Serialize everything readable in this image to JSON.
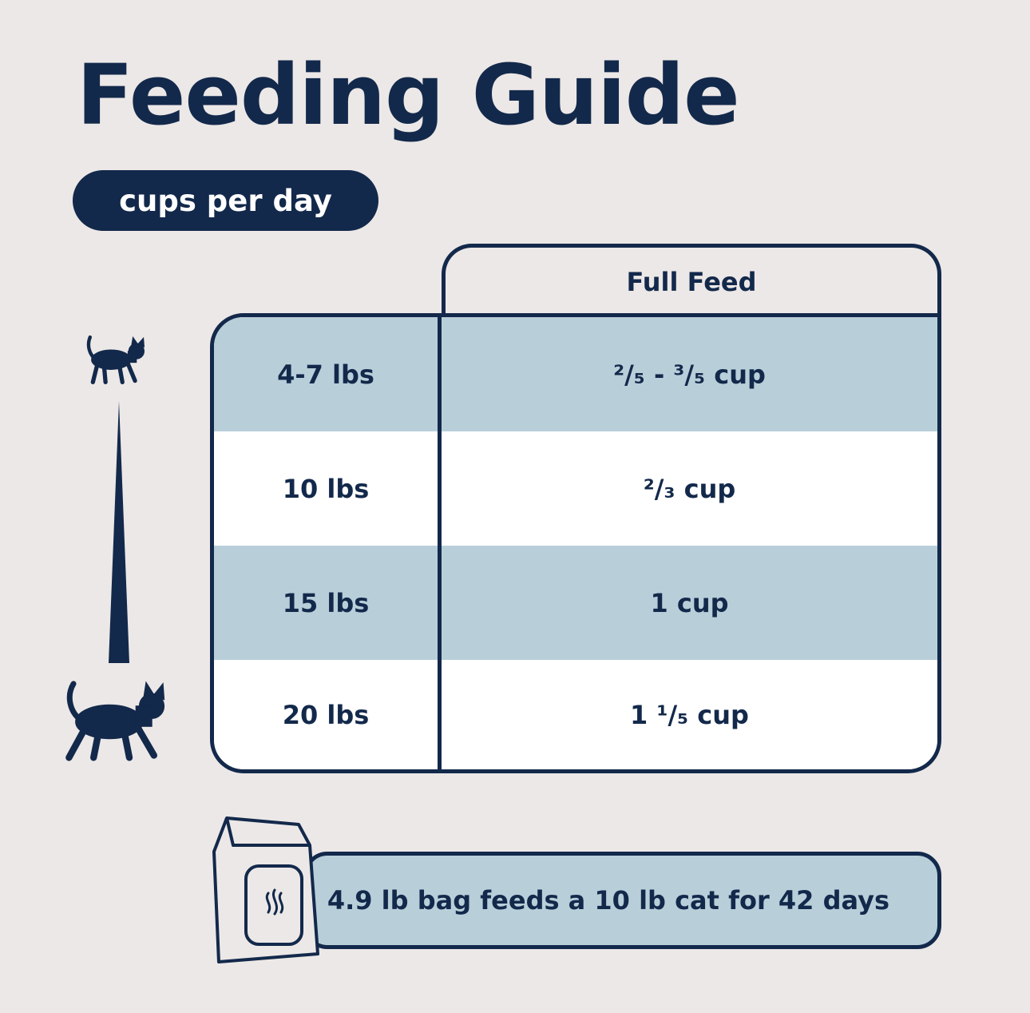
{
  "title": "Feeding Guide",
  "subtitle_pill": "cups per day",
  "table": {
    "column_header": "Full Feed",
    "rows": [
      {
        "weight": "4-7 lbs",
        "amount": "²/₅ - ³/₅ cup"
      },
      {
        "weight": "10 lbs",
        "amount": "²/₃ cup"
      },
      {
        "weight": "15 lbs",
        "amount": "1 cup"
      },
      {
        "weight": "20 lbs",
        "amount": "1 ¹/₅ cup"
      }
    ]
  },
  "bag_note": "4.9 lb bag feeds a 10 lb cat for 42 days",
  "colors": {
    "navy": "#13294B",
    "light_blue": "#B8CFDA",
    "background": "#ECE8E7"
  },
  "icons": [
    "small-cat-icon",
    "size-scale-wedge-icon",
    "large-cat-icon",
    "food-bag-icon"
  ]
}
